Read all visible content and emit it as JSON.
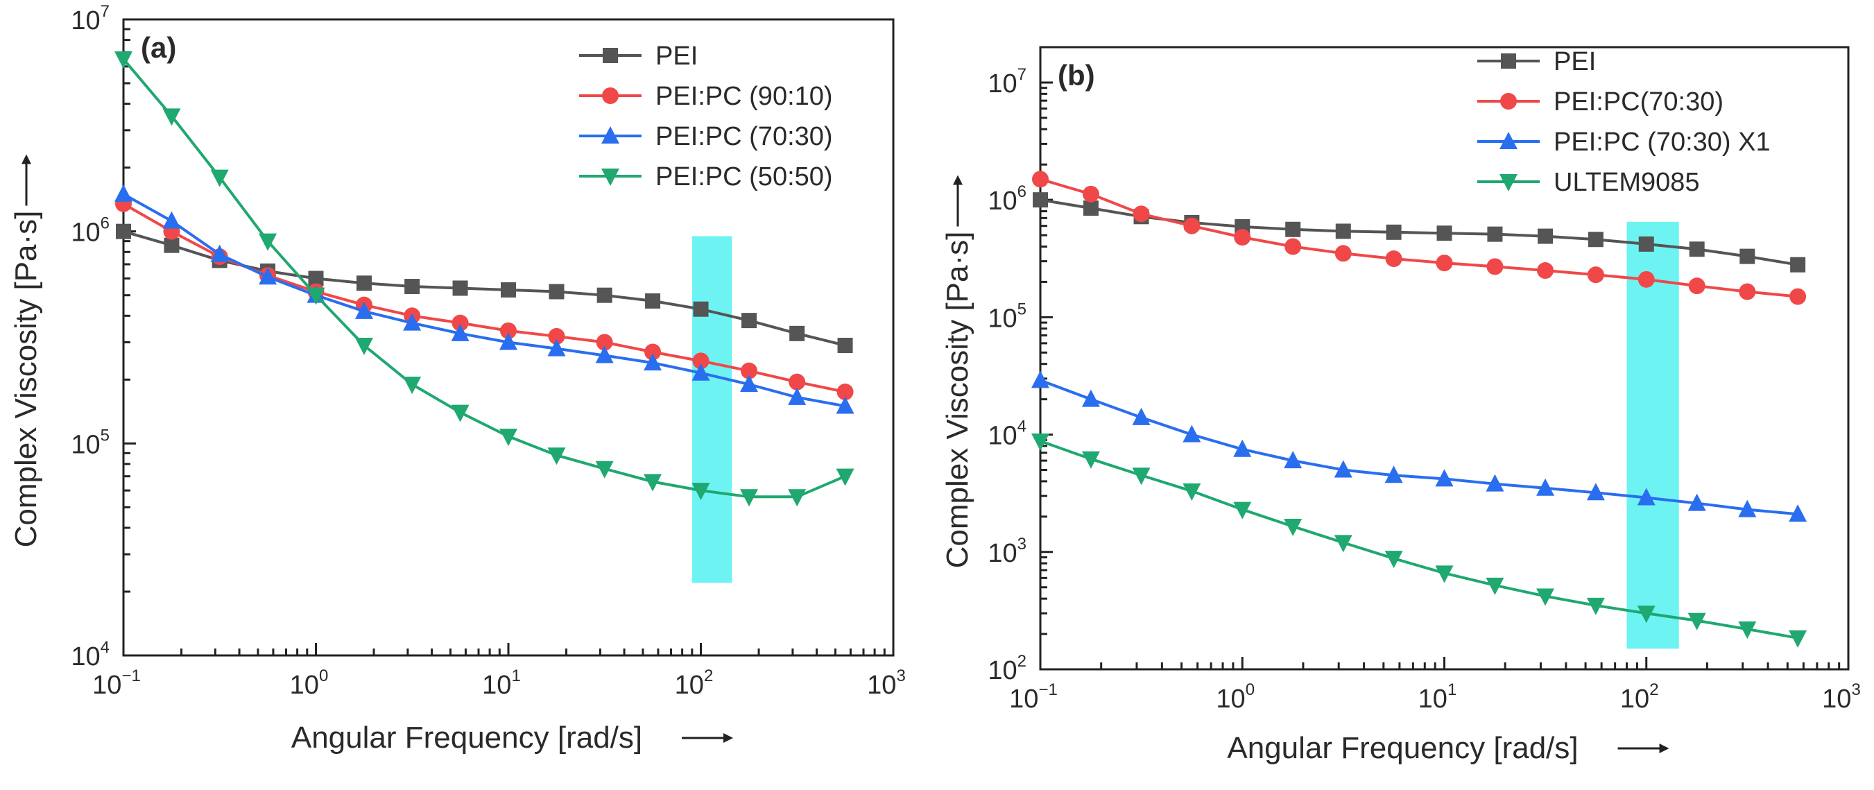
{
  "chart_data": [
    {
      "type": "line",
      "panel_label": "(a)",
      "xscale": "log",
      "yscale": "log",
      "xlim": [
        0.1,
        1000
      ],
      "ylim": [
        10000,
        10000000
      ],
      "x_ticks": [
        {
          "base": "10",
          "exp": "−1"
        },
        {
          "base": "10",
          "exp": "0"
        },
        {
          "base": "10",
          "exp": "1"
        },
        {
          "base": "10",
          "exp": "2"
        },
        {
          "base": "10",
          "exp": "3"
        }
      ],
      "y_ticks": [
        {
          "base": "10",
          "exp": "4"
        },
        {
          "base": "10",
          "exp": "5"
        },
        {
          "base": "10",
          "exp": "6"
        },
        {
          "base": "10",
          "exp": "7"
        }
      ],
      "xlabel": "Angular Frequency [rad/s]",
      "ylabel": "Complex Viscosity [Pa·s]",
      "legend_position": "top-right",
      "highlight_band": {
        "x": [
          90,
          145
        ],
        "y": [
          22000,
          950000
        ],
        "color": "#5ef2f2"
      },
      "x": [
        0.1,
        0.178,
        0.316,
        0.562,
        1.0,
        1.78,
        3.16,
        5.62,
        10,
        17.8,
        31.6,
        56.2,
        100,
        178,
        316,
        562
      ],
      "series": [
        {
          "name": "PEI",
          "color": "#555555",
          "marker": "square",
          "values": [
            1000000,
            860000,
            730000,
            650000,
            600000,
            570000,
            550000,
            540000,
            530000,
            520000,
            500000,
            470000,
            430000,
            380000,
            330000,
            290000
          ]
        },
        {
          "name": "PEI:PC (90:10)",
          "color": "#f04848",
          "marker": "circle",
          "values": [
            1350000,
            1000000,
            760000,
            620000,
            520000,
            450000,
            400000,
            370000,
            340000,
            320000,
            300000,
            270000,
            245000,
            220000,
            195000,
            175000
          ]
        },
        {
          "name": "PEI:PC (70:30)",
          "color": "#2a6ef0",
          "marker": "triangle-up",
          "values": [
            1500000,
            1120000,
            780000,
            610000,
            500000,
            420000,
            370000,
            330000,
            300000,
            280000,
            260000,
            240000,
            215000,
            190000,
            165000,
            150000
          ]
        },
        {
          "name": "PEI:PC (50:50)",
          "color": "#1fa870",
          "marker": "triangle-down",
          "values": [
            6500000,
            3500000,
            1800000,
            900000,
            500000,
            290000,
            190000,
            140000,
            108000,
            88000,
            76000,
            66000,
            60000,
            56000,
            56000,
            70000
          ]
        }
      ]
    },
    {
      "type": "line",
      "panel_label": "(b)",
      "xscale": "log",
      "yscale": "log",
      "xlim": [
        0.1,
        1000
      ],
      "ylim": [
        100,
        20000000
      ],
      "x_ticks": [
        {
          "base": "10",
          "exp": "−1"
        },
        {
          "base": "10",
          "exp": "0"
        },
        {
          "base": "10",
          "exp": "1"
        },
        {
          "base": "10",
          "exp": "2"
        },
        {
          "base": "10",
          "exp": "3"
        }
      ],
      "y_ticks": [
        {
          "base": "10",
          "exp": "2"
        },
        {
          "base": "10",
          "exp": "3"
        },
        {
          "base": "10",
          "exp": "4"
        },
        {
          "base": "10",
          "exp": "5"
        },
        {
          "base": "10",
          "exp": "6"
        },
        {
          "base": "10",
          "exp": "7"
        }
      ],
      "xlabel": "Angular Frequency [rad/s]",
      "ylabel": "Complex Viscosity [Pa·s]",
      "legend_position": "top-right",
      "highlight_band": {
        "x": [
          80,
          145
        ],
        "y": [
          150,
          650000
        ],
        "color": "#5ef2f2"
      },
      "x": [
        0.1,
        0.178,
        0.316,
        0.562,
        1.0,
        1.78,
        3.16,
        5.62,
        10,
        17.8,
        31.6,
        56.2,
        100,
        178,
        316,
        562
      ],
      "series": [
        {
          "name": "PEI",
          "color": "#555555",
          "marker": "square",
          "values": [
            1000000,
            850000,
            720000,
            640000,
            590000,
            560000,
            540000,
            530000,
            520000,
            510000,
            490000,
            460000,
            420000,
            380000,
            330000,
            280000
          ]
        },
        {
          "name": "PEI:PC(70:30)",
          "color": "#f04848",
          "marker": "circle",
          "values": [
            1500000,
            1120000,
            760000,
            600000,
            480000,
            400000,
            350000,
            315000,
            290000,
            270000,
            250000,
            230000,
            210000,
            185000,
            165000,
            150000
          ]
        },
        {
          "name": "PEI:PC (70:30) X1",
          "color": "#2a6ef0",
          "marker": "triangle-up",
          "values": [
            29000,
            20000,
            14000,
            10000,
            7500,
            6000,
            5000,
            4500,
            4200,
            3800,
            3500,
            3200,
            2900,
            2600,
            2300,
            2100
          ]
        },
        {
          "name": "ULTEM9085",
          "color": "#1fa870",
          "marker": "triangle-down",
          "values": [
            8800,
            6200,
            4500,
            3300,
            2300,
            1650,
            1200,
            880,
            660,
            520,
            420,
            350,
            300,
            260,
            220,
            185
          ]
        }
      ]
    }
  ]
}
